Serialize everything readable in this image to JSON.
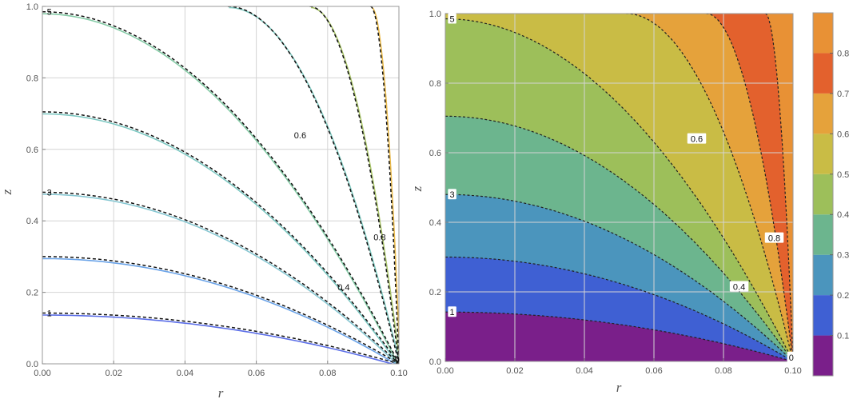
{
  "chart_data": [
    {
      "type": "contour",
      "variant": "line contours (solid colored) overlaid with dashed black analytic contours",
      "xlabel": "r",
      "ylabel": "z",
      "xlim": [
        0,
        0.1
      ],
      "ylim": [
        0,
        1.0
      ],
      "x_ticks": [
        "0.00",
        "0.02",
        "0.04",
        "0.06",
        "0.08",
        "0.10"
      ],
      "y_ticks": [
        "0.0",
        "0.2",
        "0.4",
        "0.6",
        "0.8",
        "1.0"
      ],
      "grid": true,
      "level_labels": [
        "5",
        "0.6",
        "3",
        "0.8",
        "0.4",
        "1",
        "0"
      ],
      "curves": [
        {
          "family": "horizontal",
          "z_at_axis": 0.142,
          "color": "#5b6ee8"
        },
        {
          "family": "horizontal",
          "z_at_axis": 0.3,
          "color": "#6aa3e8"
        },
        {
          "family": "horizontal",
          "z_at_axis": 0.48,
          "color": "#86c7d2"
        },
        {
          "family": "horizontal",
          "z_at_axis": 0.705,
          "color": "#7cc8c2"
        },
        {
          "family": "horizontal",
          "z_at_axis": 0.985,
          "color": "#84cba6"
        },
        {
          "family": "radial",
          "r_at_top": 0.052,
          "color": "#7fc9c0"
        },
        {
          "family": "radial",
          "r_at_top": 0.075,
          "color": "#a9c46a"
        },
        {
          "family": "radial",
          "r_at_top": 0.092,
          "color": "#e8b94b"
        }
      ]
    },
    {
      "type": "heatmap",
      "variant": "filled contour plot with dashed contour lines and color legend",
      "xlabel": "r",
      "ylabel": "z",
      "xlim": [
        0,
        0.1
      ],
      "ylim": [
        0,
        1.0
      ],
      "x_ticks": [
        "0.00",
        "0.02",
        "0.04",
        "0.06",
        "0.08",
        "0.10"
      ],
      "y_ticks": [
        "0.0",
        "0.2",
        "0.4",
        "0.6",
        "0.8",
        "1.0"
      ],
      "grid": true,
      "level_labels": [
        "5",
        "0.6",
        "3",
        "0.8",
        "0.4",
        "1",
        "0"
      ],
      "colorbar": {
        "ticks": [
          "0.1",
          "0.2",
          "0.3",
          "0.4",
          "0.5",
          "0.6",
          "0.7",
          "0.8"
        ],
        "bands": [
          {
            "from": 0.0,
            "to": 0.1,
            "color": "#7a1f8a"
          },
          {
            "from": 0.1,
            "to": 0.2,
            "color": "#3f60d3"
          },
          {
            "from": 0.2,
            "to": 0.3,
            "color": "#4b95bd"
          },
          {
            "from": 0.3,
            "to": 0.4,
            "color": "#6cb58e"
          },
          {
            "from": 0.4,
            "to": 0.5,
            "color": "#9dbf5a"
          },
          {
            "from": 0.5,
            "to": 0.6,
            "color": "#c9bc45"
          },
          {
            "from": 0.6,
            "to": 0.7,
            "color": "#e5a23b"
          },
          {
            "from": 0.7,
            "to": 0.8,
            "color": "#e3612d"
          },
          {
            "from": 0.8,
            "to": 0.9,
            "color": "#e89135"
          }
        ]
      },
      "regions_bottom_to_top": [
        {
          "below_z_at_axis": 0.142,
          "color": "#7a1f8a"
        },
        {
          "below_z_at_axis": 0.3,
          "color": "#3f60d3"
        },
        {
          "below_z_at_axis": 0.48,
          "color": "#4b95bd"
        },
        {
          "below_z_at_axis": 0.705,
          "color": "#6cb58e"
        },
        {
          "below_z_at_axis": 0.985,
          "color": "#9dbf5a"
        },
        {
          "left_of_r_at_top": 0.052,
          "color": "#c9bc45"
        },
        {
          "left_of_r_at_top": 0.075,
          "color": "#e5a23b"
        },
        {
          "left_of_r_at_top": 0.092,
          "color": "#e3612d"
        },
        {
          "left_of_r_at_top": 0.1,
          "color": "#e89135"
        }
      ],
      "dashed_curves": {
        "horizontal_z_at_axis": [
          0.142,
          0.3,
          0.48,
          0.705,
          0.985
        ],
        "radial_r_at_top": [
          0.052,
          0.075,
          0.092
        ]
      }
    }
  ]
}
